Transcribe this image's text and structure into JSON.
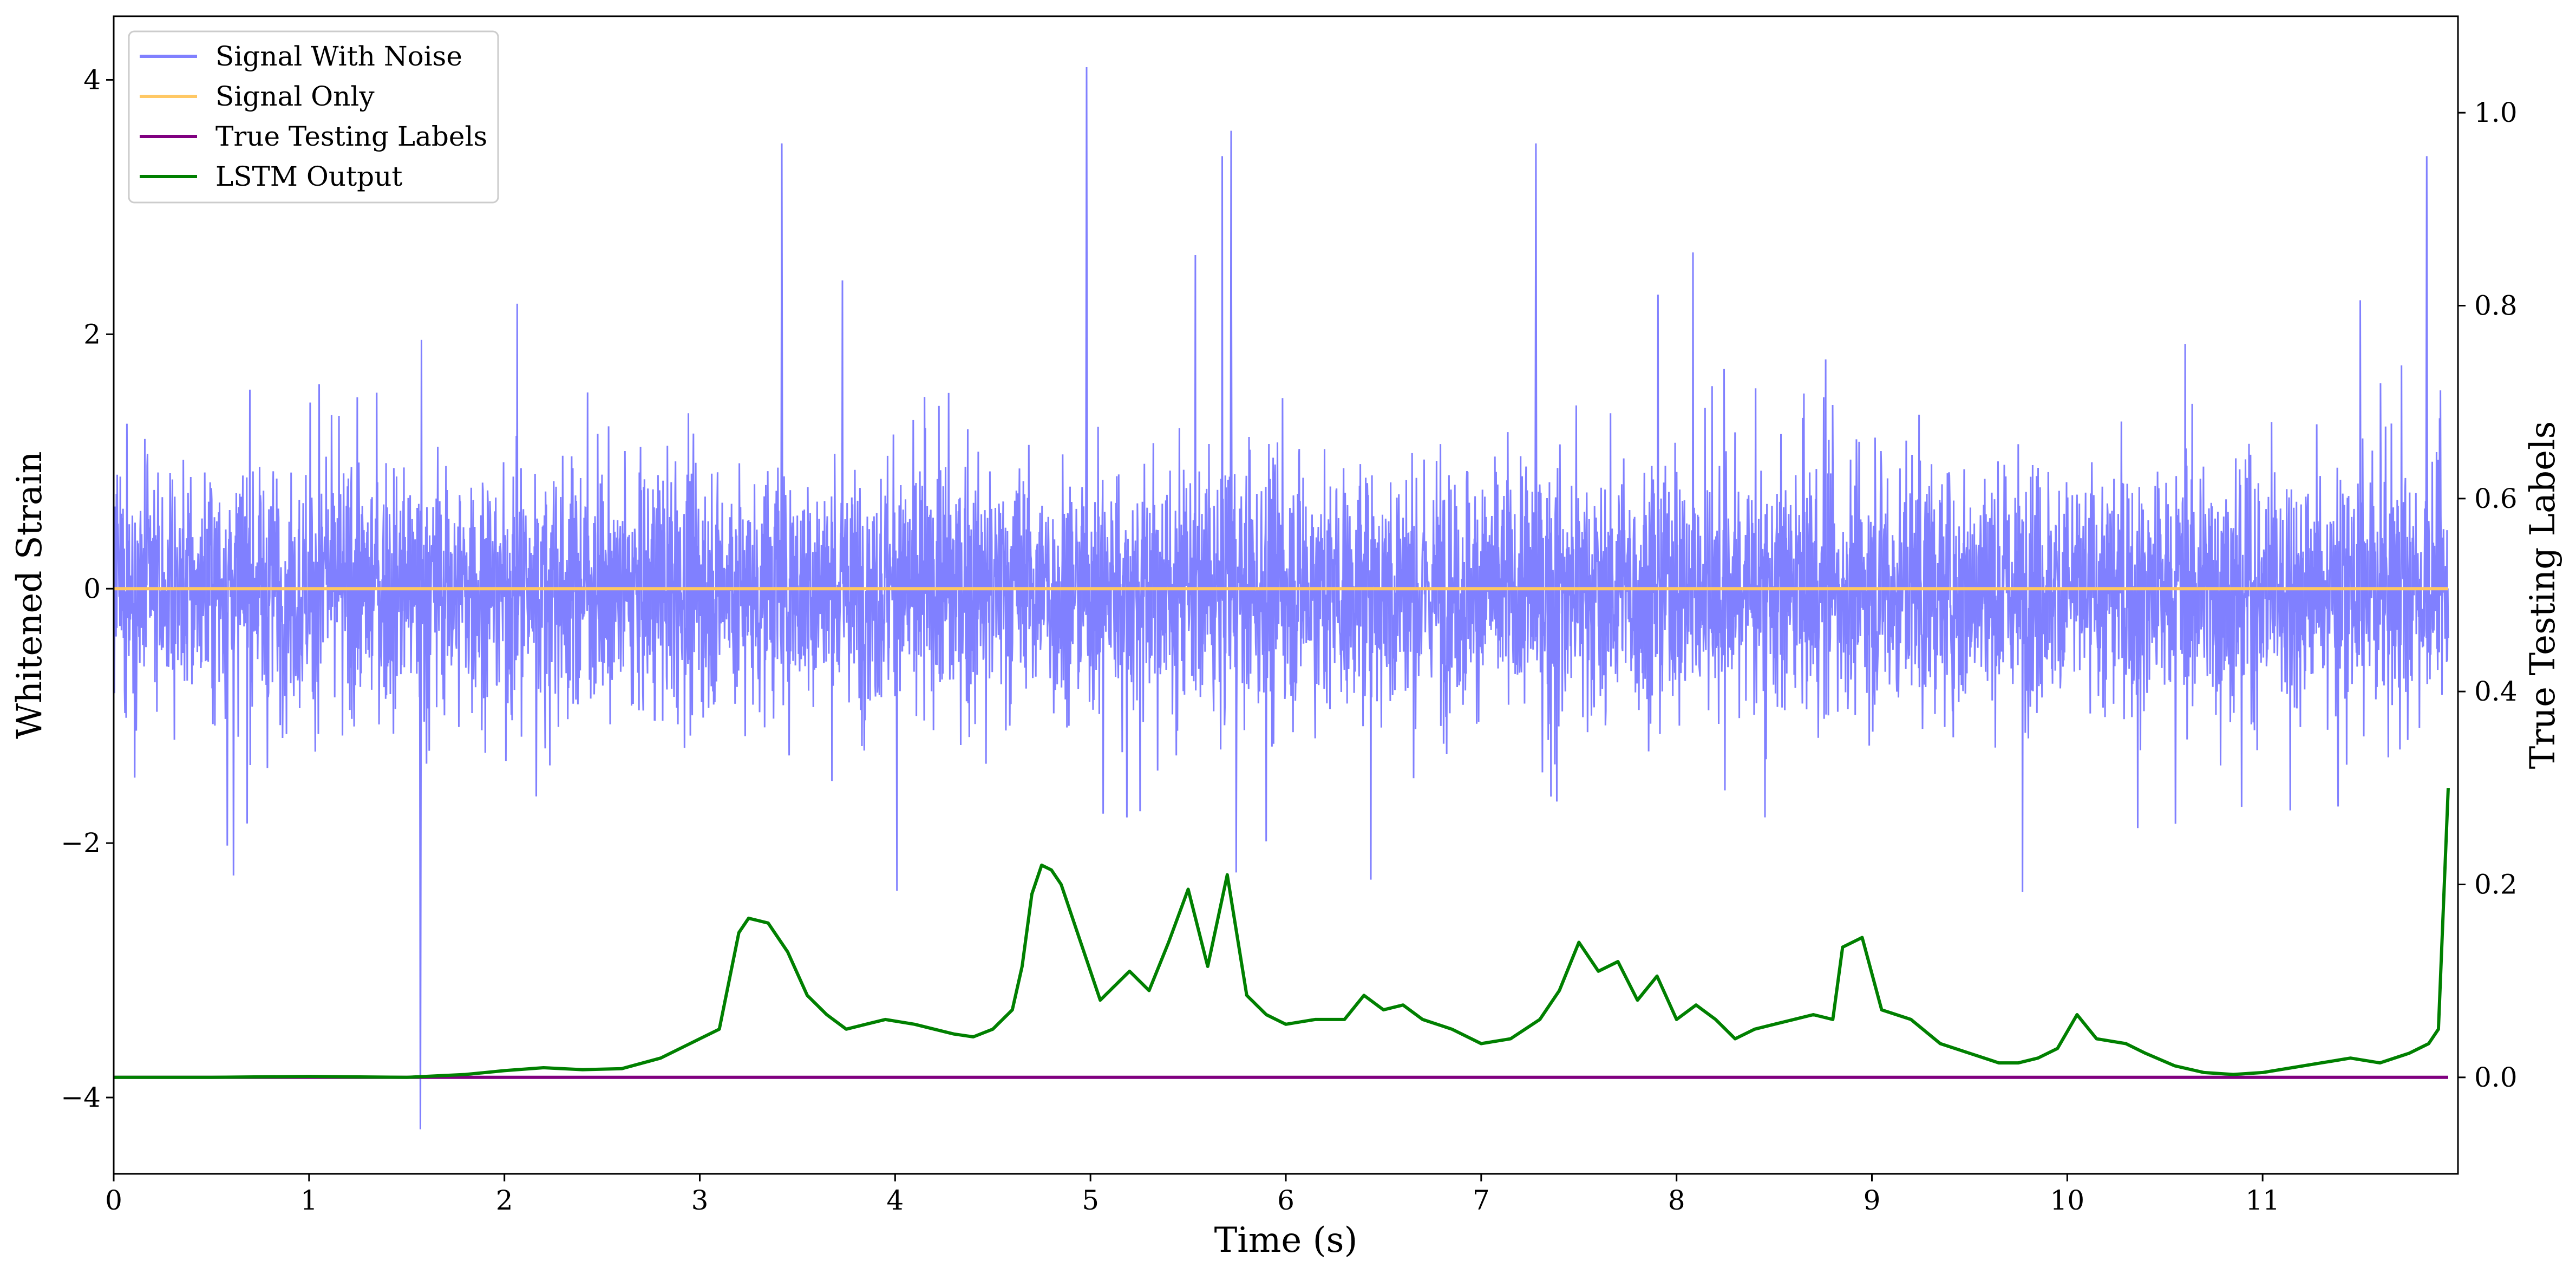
{
  "chart_data": {
    "type": "line",
    "xlabel": "Time (s)",
    "ylabel_left": "Whitened Strain",
    "ylabel_right": "True Testing Labels",
    "xlim": [
      0,
      12
    ],
    "ylim_left": [
      -4.6,
      4.5
    ],
    "ylim_right": [
      -0.1,
      1.1
    ],
    "x_ticks": [
      0,
      1,
      2,
      3,
      4,
      5,
      6,
      7,
      8,
      9,
      10,
      11
    ],
    "x_tick_labels": [
      "0",
      "1",
      "2",
      "3",
      "4",
      "5",
      "6",
      "7",
      "8",
      "9",
      "10",
      "11"
    ],
    "y_left_ticks": [
      -4,
      -2,
      0,
      2,
      4
    ],
    "y_left_tick_labels": [
      "−4",
      "−2",
      "0",
      "2",
      "4"
    ],
    "y_right_ticks": [
      0.0,
      0.2,
      0.4,
      0.6,
      0.8,
      1.0
    ],
    "y_right_tick_labels": [
      "0.0",
      "0.2",
      "0.4",
      "0.6",
      "0.8",
      "1.0"
    ],
    "legend_position": "upper-left",
    "grid": false,
    "series": [
      {
        "name": "Signal With Noise",
        "axis": "left",
        "color": "#8080ff",
        "envelope": {
          "typical_amplitude": 1.3,
          "spike_max": 4.1,
          "spike_min": -4.25
        },
        "notable_spikes": [
          [
            1.57,
            -4.25
          ],
          [
            4.98,
            4.1
          ],
          [
            5.72,
            3.6
          ],
          [
            3.42,
            3.5
          ],
          [
            7.28,
            3.5
          ],
          [
            11.84,
            3.4
          ]
        ]
      },
      {
        "name": "Signal Only",
        "axis": "left",
        "color": "#ffc864",
        "x": [
          0,
          11.95
        ],
        "y": [
          0,
          0
        ]
      },
      {
        "name": "True Testing Labels",
        "axis": "right",
        "color": "#800080",
        "x": [
          0,
          11.95
        ],
        "y": [
          0,
          0
        ]
      },
      {
        "name": "LSTM Output",
        "axis": "right",
        "color": "#008000",
        "x": [
          0,
          0.5,
          1.0,
          1.5,
          1.8,
          2.0,
          2.2,
          2.4,
          2.6,
          2.8,
          3.0,
          3.1,
          3.2,
          3.25,
          3.35,
          3.45,
          3.55,
          3.65,
          3.75,
          3.85,
          3.95,
          4.1,
          4.2,
          4.3,
          4.4,
          4.5,
          4.6,
          4.65,
          4.7,
          4.75,
          4.8,
          4.85,
          4.95,
          5.05,
          5.2,
          5.3,
          5.4,
          5.5,
          5.6,
          5.7,
          5.8,
          5.9,
          6.0,
          6.15,
          6.3,
          6.4,
          6.5,
          6.6,
          6.7,
          6.85,
          7.0,
          7.15,
          7.3,
          7.4,
          7.5,
          7.6,
          7.7,
          7.8,
          7.9,
          8.0,
          8.1,
          8.2,
          8.3,
          8.4,
          8.5,
          8.6,
          8.7,
          8.8,
          8.85,
          8.95,
          9.05,
          9.2,
          9.35,
          9.5,
          9.65,
          9.75,
          9.85,
          9.95,
          10.05,
          10.15,
          10.3,
          10.4,
          10.55,
          10.7,
          10.85,
          11.0,
          11.15,
          11.3,
          11.45,
          11.6,
          11.75,
          11.85,
          11.9,
          11.95
        ],
        "y": [
          0.0,
          0.0,
          0.001,
          0.0,
          0.003,
          0.007,
          0.01,
          0.008,
          0.009,
          0.02,
          0.04,
          0.05,
          0.15,
          0.165,
          0.16,
          0.13,
          0.085,
          0.065,
          0.05,
          0.055,
          0.06,
          0.055,
          0.05,
          0.045,
          0.042,
          0.05,
          0.07,
          0.115,
          0.19,
          0.22,
          0.215,
          0.2,
          0.14,
          0.08,
          0.11,
          0.09,
          0.14,
          0.195,
          0.115,
          0.21,
          0.085,
          0.065,
          0.055,
          0.06,
          0.06,
          0.085,
          0.07,
          0.075,
          0.06,
          0.05,
          0.035,
          0.04,
          0.06,
          0.09,
          0.14,
          0.11,
          0.12,
          0.08,
          0.105,
          0.06,
          0.075,
          0.06,
          0.04,
          0.05,
          0.055,
          0.06,
          0.065,
          0.06,
          0.135,
          0.145,
          0.07,
          0.06,
          0.035,
          0.025,
          0.015,
          0.015,
          0.02,
          0.03,
          0.065,
          0.04,
          0.035,
          0.025,
          0.012,
          0.005,
          0.003,
          0.005,
          0.01,
          0.015,
          0.02,
          0.015,
          0.025,
          0.035,
          0.05,
          0.3
        ]
      }
    ]
  }
}
